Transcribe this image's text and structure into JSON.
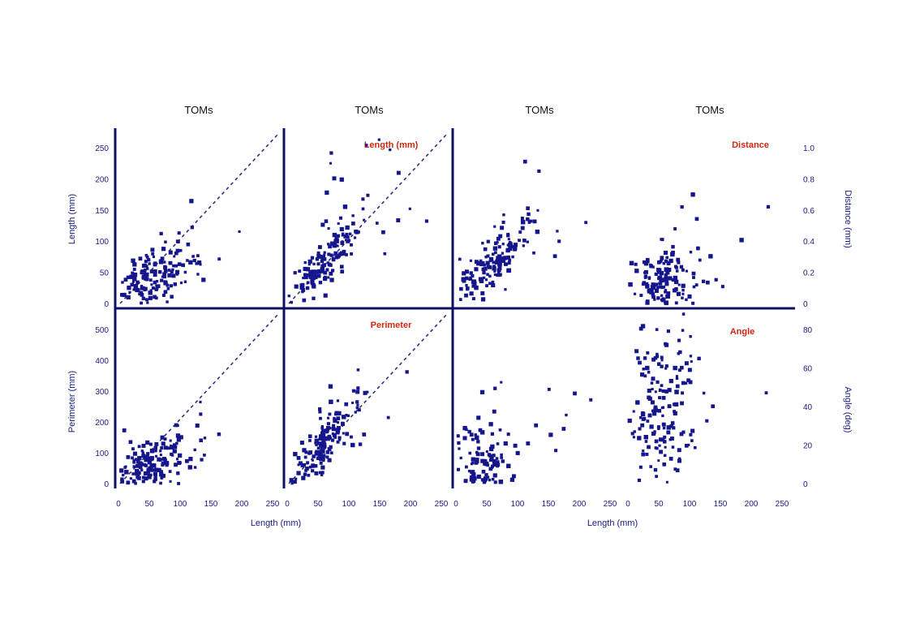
{
  "chart_data": {
    "type": "scatter",
    "colors": {
      "points": "#16168c",
      "axes": "#101060",
      "labels": "#cc2a12",
      "ticks": "#1a1a80"
    },
    "col_titles": [
      "TOMs",
      "TOMs",
      "TOMs",
      "TOMs"
    ],
    "panel_labels": {
      "top_1": "Length (mm)",
      "top_3": "Distance",
      "bottom_1": "Perimeter",
      "bottom_3": "Angle"
    },
    "axis_titles": {
      "left_top": "Length (mm)",
      "left_bottom": "Perimeter (mm)",
      "bottom_left": "Length (mm)",
      "bottom_right": "Length (mm)",
      "right_top": "Distance (mm)",
      "right_bottom": "Angle (deg)"
    },
    "ticks": {
      "x": [
        "0",
        "50",
        "100",
        "150",
        "200",
        "250"
      ],
      "y_left_top": [
        "0",
        "50",
        "100",
        "150",
        "200",
        "250"
      ],
      "y_left_bottom": [
        "0",
        "100",
        "200",
        "300",
        "400",
        "500"
      ],
      "y_right_top": [
        "0",
        "0.2",
        "0.4",
        "0.6",
        "0.8",
        "1.0"
      ],
      "y_right_bottom": [
        "0",
        "20",
        "40",
        "60",
        "80"
      ]
    },
    "panels": [
      {
        "row": 0,
        "col": 0,
        "xlim": [
          0,
          260
        ],
        "ylim": [
          0,
          260
        ],
        "diagonal": true,
        "cluster": {
          "cx": 50,
          "cy": 40,
          "sx": 30,
          "sy": 22,
          "n": 160,
          "corr": 0.3
        }
      },
      {
        "row": 0,
        "col": 1,
        "xlim": [
          0,
          260
        ],
        "ylim": [
          0,
          260
        ],
        "diagonal": true,
        "cluster": {
          "cx": 55,
          "cy": 60,
          "sx": 32,
          "sy": 35,
          "n": 170,
          "corr": 0.85
        }
      },
      {
        "row": 0,
        "col": 2,
        "xlim": [
          0,
          260
        ],
        "ylim": [
          0,
          1.1
        ],
        "diagonal": false,
        "cluster": {
          "cx": 50,
          "cy": 0.22,
          "sx": 35,
          "sy": 0.14,
          "n": 170,
          "corr": 0.8
        }
      },
      {
        "row": 0,
        "col": 3,
        "xlim": [
          0,
          260
        ],
        "ylim": [
          0,
          1.1
        ],
        "diagonal": false,
        "cluster": {
          "cx": 50,
          "cy": 0.1,
          "sx": 25,
          "sy": 0.12,
          "n": 180,
          "corr": 0.1
        }
      },
      {
        "row": 1,
        "col": 0,
        "xlim": [
          0,
          260
        ],
        "ylim": [
          0,
          520
        ],
        "diagonal": true,
        "cluster": {
          "cx": 45,
          "cy": 55,
          "sx": 30,
          "sy": 40,
          "n": 170,
          "corr": 0.35
        }
      },
      {
        "row": 1,
        "col": 1,
        "xlim": [
          0,
          260
        ],
        "ylim": [
          0,
          520
        ],
        "diagonal": true,
        "cluster": {
          "cx": 50,
          "cy": 110,
          "sx": 30,
          "sy": 75,
          "n": 170,
          "corr": 0.85
        }
      },
      {
        "row": 1,
        "col": 2,
        "xlim": [
          0,
          260
        ],
        "ylim": [
          0,
          90
        ],
        "diagonal": false,
        "cluster": {
          "cx": 40,
          "cy": 8,
          "sx": 30,
          "sy": 12,
          "n": 170,
          "corr": -0.1
        }
      },
      {
        "row": 1,
        "col": 3,
        "xlim": [
          0,
          260
        ],
        "ylim": [
          0,
          90
        ],
        "diagonal": false,
        "cluster": {
          "cx": 50,
          "cy": 35,
          "sx": 28,
          "sy": 25,
          "n": 190,
          "corr": 0.0
        }
      }
    ]
  }
}
